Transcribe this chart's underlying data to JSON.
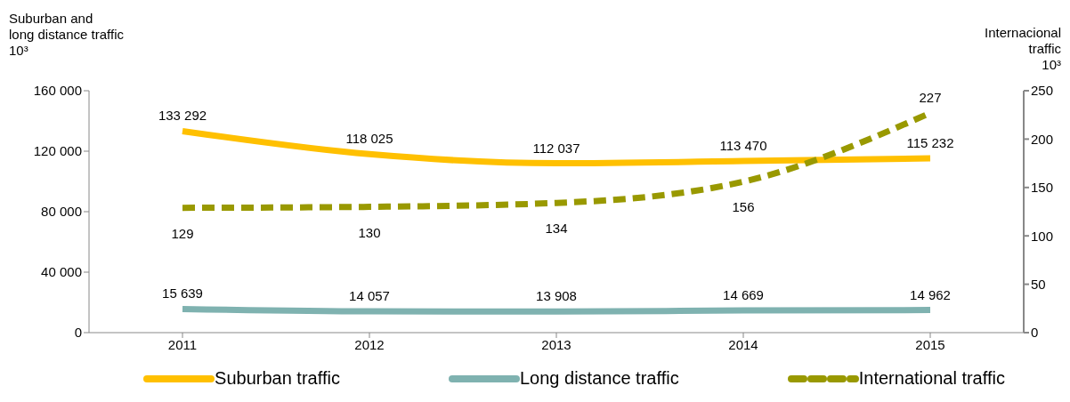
{
  "chart_data": {
    "type": "line",
    "ylabel": "Suburban and\nlong distance traffic\n10³",
    "y2label": "Internacional\ntraffic\n10³",
    "categories": [
      "2011",
      "2012",
      "2013",
      "2014",
      "2015"
    ],
    "series": [
      {
        "name": "Suburban traffic",
        "color": "#ffc000",
        "values": [
          133292,
          118025,
          112037,
          113470,
          115232
        ],
        "value_labels": [
          "133 292",
          "118 025",
          "112 037",
          "113 470",
          "115 232"
        ]
      },
      {
        "name": "Long distance traffic",
        "color": "#7fb2b0",
        "values": [
          15639,
          14057,
          13908,
          14669,
          14962
        ],
        "value_labels": [
          "15 639",
          "14 057",
          "13 908",
          "14 669",
          "14 962"
        ]
      },
      {
        "name": "International traffic",
        "color": "#999900",
        "axis": "y2",
        "line_style": "dashed",
        "values": [
          129,
          130,
          134,
          156,
          227
        ],
        "data_labels": true
      }
    ],
    "ylim": [
      0,
      160000
    ],
    "yticks": [
      {
        "value": 0,
        "label": "0"
      },
      {
        "value": 40000,
        "label": "40 000"
      },
      {
        "value": 80000,
        "label": "80 000"
      },
      {
        "value": 120000,
        "label": "120 000"
      },
      {
        "value": 160000,
        "label": "160 000"
      }
    ],
    "y2lim": [
      0,
      250
    ],
    "y2ticks": [
      0,
      50,
      100,
      150,
      200,
      250
    ],
    "legend": "bottom",
    "marker": "none"
  }
}
